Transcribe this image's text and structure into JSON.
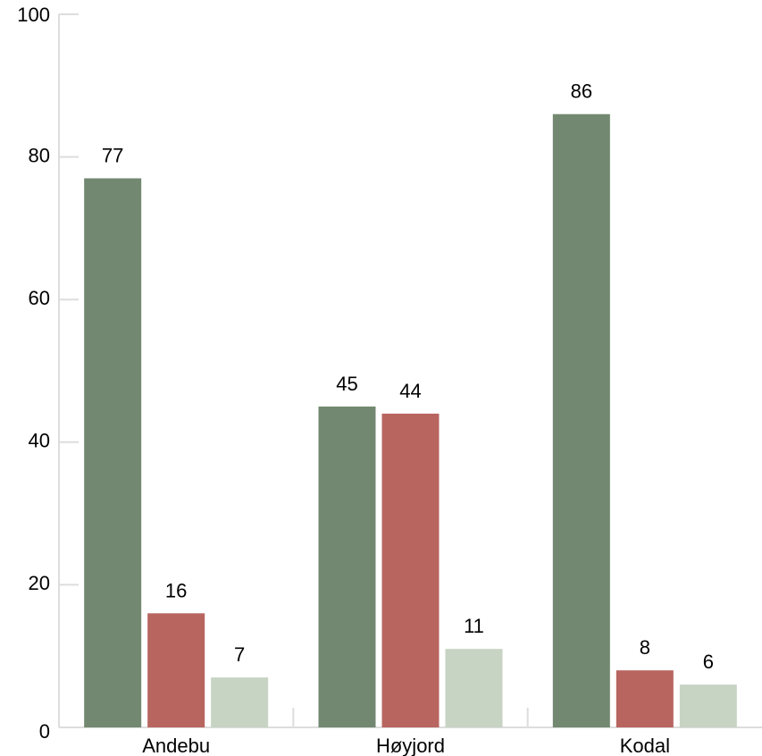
{
  "chart_data": {
    "type": "bar",
    "title": "",
    "xlabel": "",
    "ylabel": "",
    "categories": [
      "Andebu",
      "Høyjord",
      "Kodal"
    ],
    "series": [
      {
        "values": [
          77,
          45,
          86
        ],
        "color": "#738870"
      },
      {
        "values": [
          16,
          44,
          8
        ],
        "color": "#b86560"
      },
      {
        "values": [
          7,
          11,
          6
        ],
        "color": "#c7d3c3"
      }
    ],
    "ylim": [
      0,
      100
    ],
    "yticks": [
      0,
      20,
      40,
      60,
      80,
      100
    ],
    "grid": false,
    "legend": "none",
    "data_labels": true
  }
}
